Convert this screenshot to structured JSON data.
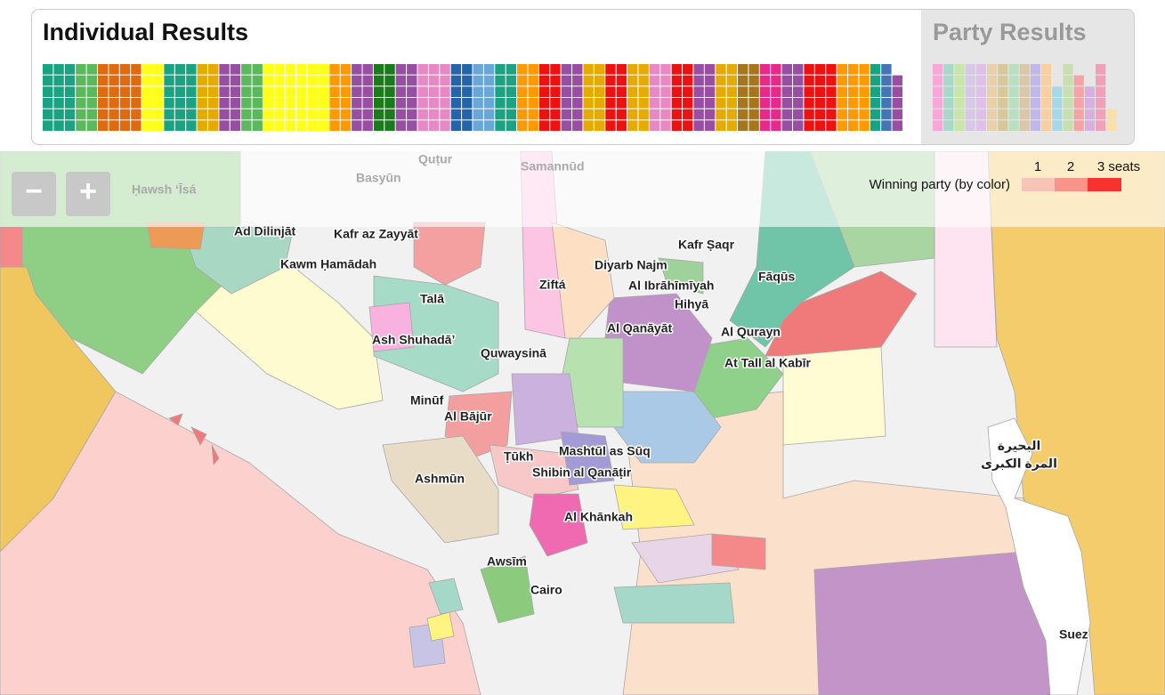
{
  "header": {
    "individual_title": "Individual Results",
    "party_title": "Party Results"
  },
  "individual_results": {
    "column_colors": [
      "#1aa383",
      "#1aa383",
      "#1aa383",
      "#5cb85c",
      "#5cb85c",
      "#e06a10",
      "#e06a10",
      "#e06a10",
      "#e06a10",
      "#ffff1a",
      "#ffff1a",
      "#1aa383",
      "#1aa383",
      "#1aa383",
      "#e6ab02",
      "#e6ab02",
      "#984ea3",
      "#984ea3",
      "#5cb85c",
      "#5cb85c",
      "#ffff1a",
      "#ffff1a",
      "#ffff1a",
      "#ffff1a",
      "#ffff1a",
      "#ffff1a",
      "#ff9900",
      "#ff9900",
      "#984ea3",
      "#984ea3",
      "#1b7a1b",
      "#1b7a1b",
      "#984ea3",
      "#984ea3",
      "#e78ac3",
      "#e78ac3",
      "#e78ac3",
      "#2166ac",
      "#2166ac",
      "#6aa6d8",
      "#6aa6d8",
      "#1aa383",
      "#1aa383",
      "#ff9900",
      "#ff9900",
      "#ee1111",
      "#ee1111",
      "#984ea3",
      "#984ea3",
      "#e6ab02",
      "#e6ab02",
      "#ee1111",
      "#ee1111",
      "#e6ab02",
      "#e6ab02",
      "#e78ac3",
      "#e78ac3",
      "#ee1111",
      "#ee1111",
      "#984ea3",
      "#984ea3",
      "#e6ab02",
      "#e6ab02",
      "#a6761d",
      "#a6761d",
      "#e7298a",
      "#e7298a",
      "#984ea3",
      "#984ea3",
      "#ee1111",
      "#ee1111",
      "#ee1111",
      "#ff9900",
      "#ff9900",
      "#ff9900",
      "#1aa383",
      "#4575b4",
      "#984ea3"
    ]
  },
  "party_results": {
    "column_colors": [
      "#f7a8d8",
      "#a8d8c8",
      "#c8e6a8",
      "#d8c8e8",
      "#e0c0e8",
      "#e8d0a8",
      "#d8c898",
      "#b8e0c0",
      "#d8c8a8",
      "#c0b8e8",
      "#f8d0a0",
      "#a8d8e8",
      "#c8e0b0",
      "#f4a4a4",
      "#d8b0e0",
      "#f0a0b8",
      "#f8e0a8"
    ]
  },
  "map": {
    "zoom_out": "−",
    "zoom_in": "+",
    "legend": {
      "title": "Winning party (by color)",
      "levels": [
        "1",
        "2",
        "3 seats"
      ],
      "colors": [
        "#f9c4b8",
        "#f8948a",
        "#f7322f"
      ]
    },
    "labels": [
      "Ad Dilinjāt",
      "Kafr az Zayyāt",
      "Kawm Ḥamādah",
      "Talā",
      "Ash Shuhadāʼ",
      "Minūf",
      "Al Bājūr",
      "Quwaysinā",
      "Ziftá",
      "Diyarb Najm",
      "Kafr Ṣaqr",
      "Al Ibrāhīmīyah",
      "Hihyā",
      "Fāqūs",
      "Al Qanāyāt",
      "Al Qurayn",
      "At Tall al Kabīr",
      "Mashtūl as Sūq",
      "Ṭūkh",
      "Shibin al Qanāṭir",
      "Ashmūn",
      "Al Khānkah",
      "Awsīm"
    ],
    "big_labels": [
      "Cairo",
      "Suez"
    ],
    "faded_labels": [
      "Quṭur",
      "Basyūn",
      "Samannūd",
      "Ḥawsh ʻĪsá"
    ],
    "lake_label": [
      "البحيرة",
      "المرة الكبرى"
    ]
  }
}
